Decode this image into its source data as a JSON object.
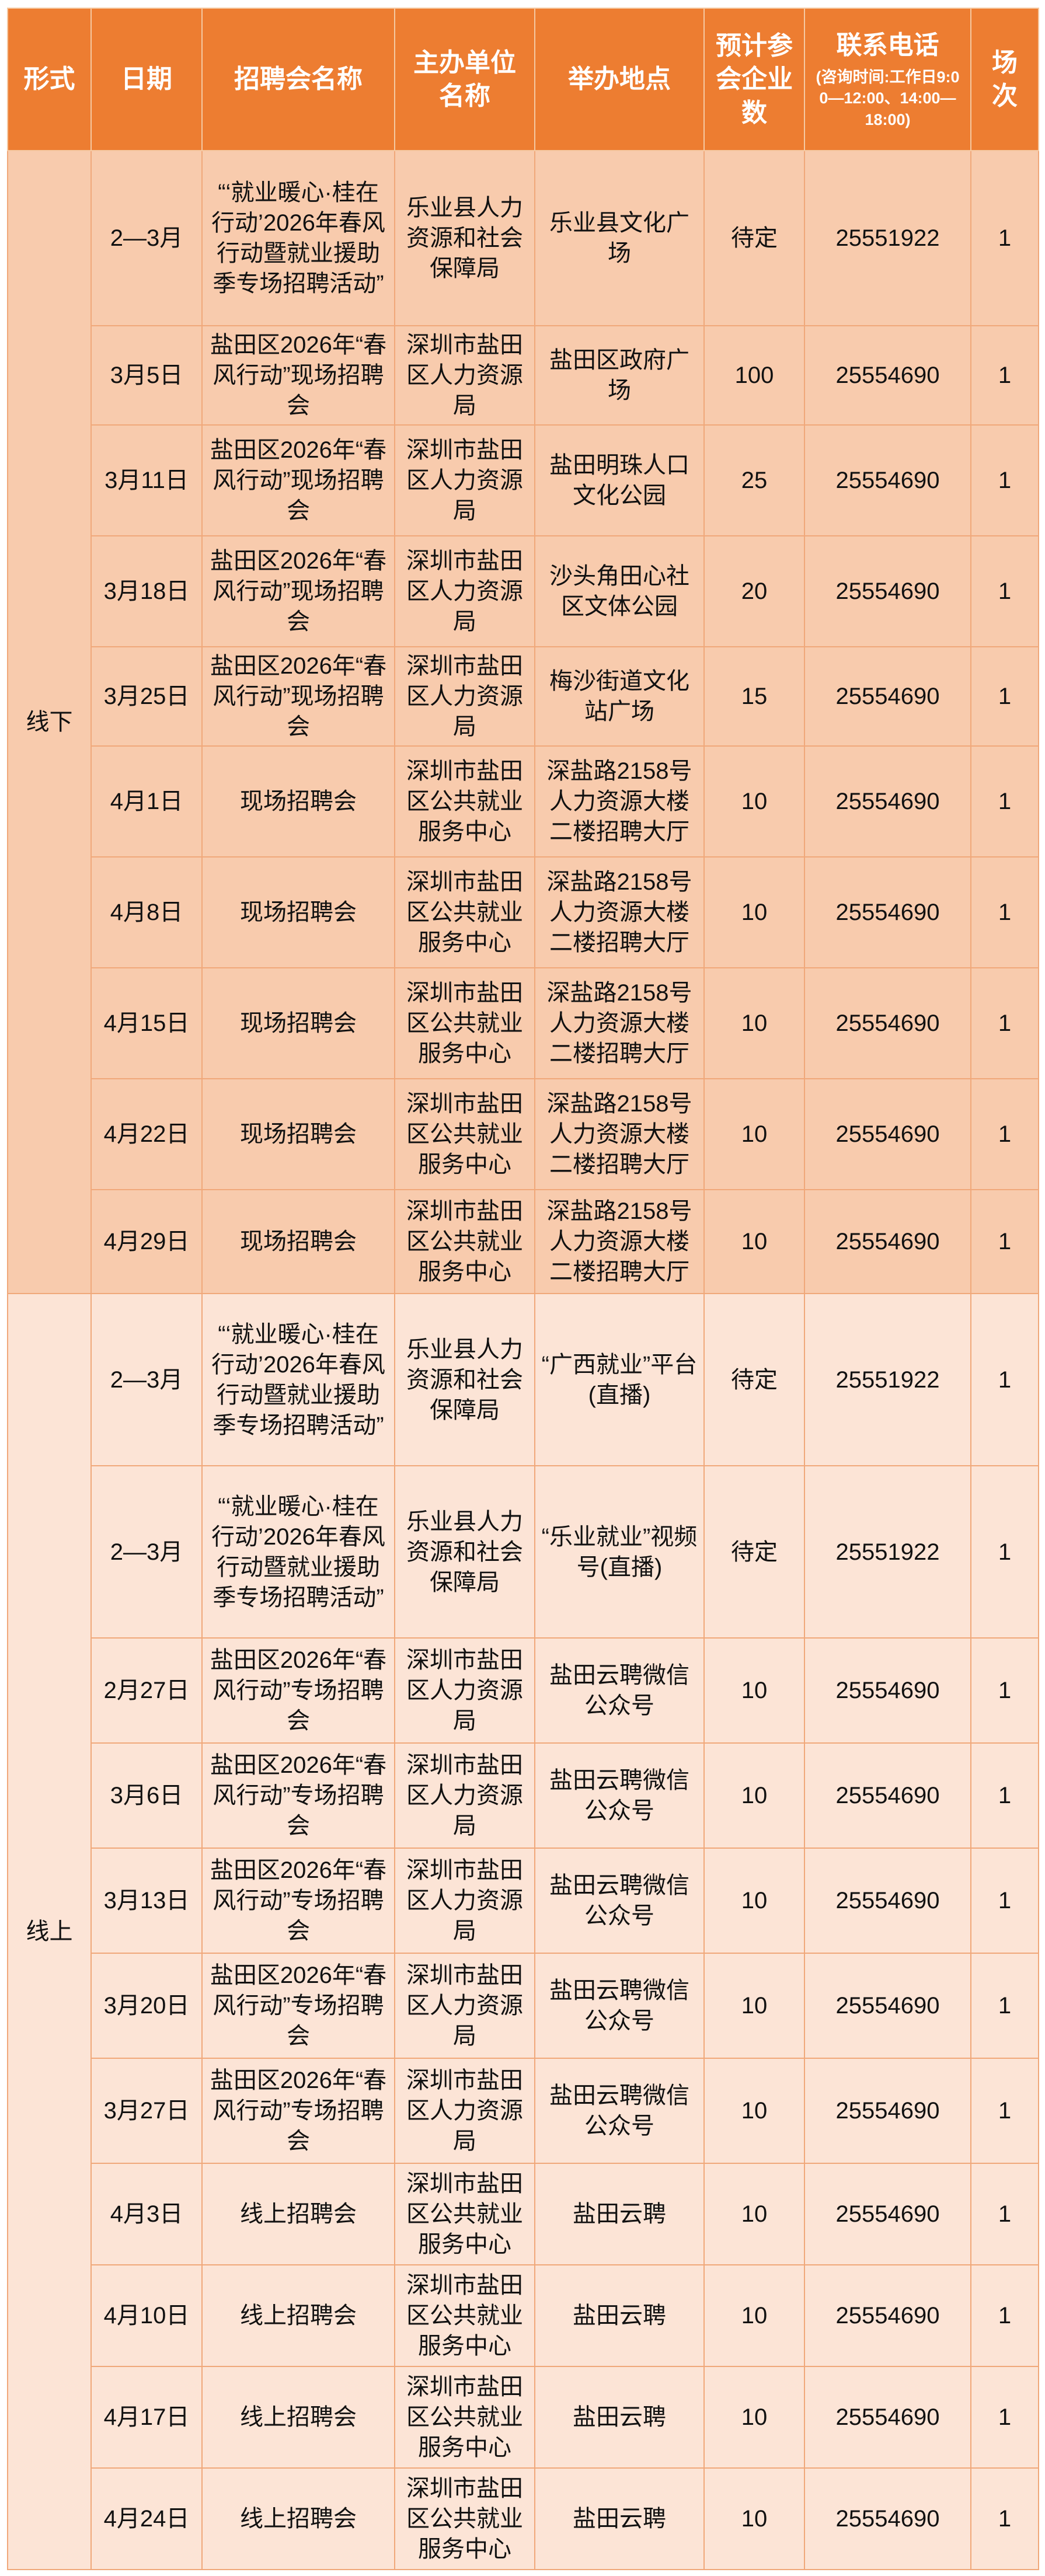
{
  "colors": {
    "header_bg": "#ED7D31",
    "header_text": "#FFFFFF",
    "offline_section_bg": "#F8CBAD",
    "online_section_bg": "#FCE4D6",
    "grid_line": "#F0A87A",
    "body_text": "#111111"
  },
  "table": {
    "columns": [
      "形式",
      "日期",
      "招聘会名称",
      "主办单位名称",
      "举办地点",
      "预计参会企业数",
      "联系电话",
      "场次"
    ],
    "phone_note": "(咨询时间:工作日9:00—12:00、14:00—18:00)",
    "groups": [
      {
        "label": "线下",
        "rows": [
          {
            "date": "2—3月",
            "name": "“‘就业暖心·桂在行动’2026年春风行动暨就业援助季专场招聘活动”",
            "organizer": "乐业县人力资源和社会保障局",
            "venue": "乐业县文化广场",
            "companies": "待定",
            "phone": "25551922",
            "sessions": "1"
          },
          {
            "date": "3月5日",
            "name": "盐田区2026年“春风行动”现场招聘会",
            "organizer": "深圳市盐田区人力资源局",
            "venue": "盐田区政府广场",
            "companies": "100",
            "phone": "25554690",
            "sessions": "1"
          },
          {
            "date": "3月11日",
            "name": "盐田区2026年“春风行动”现场招聘会",
            "organizer": "深圳市盐田区人力资源局",
            "venue": "盐田明珠人口文化公园",
            "companies": "25",
            "phone": "25554690",
            "sessions": "1"
          },
          {
            "date": "3月18日",
            "name": "盐田区2026年“春风行动”现场招聘会",
            "organizer": "深圳市盐田区人力资源局",
            "venue": "沙头角田心社区文体公园",
            "companies": "20",
            "phone": "25554690",
            "sessions": "1"
          },
          {
            "date": "3月25日",
            "name": "盐田区2026年“春风行动”现场招聘会",
            "organizer": "深圳市盐田区人力资源局",
            "venue": "梅沙街道文化站广场",
            "companies": "15",
            "phone": "25554690",
            "sessions": "1"
          },
          {
            "date": "4月1日",
            "name": "现场招聘会",
            "organizer": "深圳市盐田区公共就业服务中心",
            "venue": "深盐路2158号人力资源大楼二楼招聘大厅",
            "companies": "10",
            "phone": "25554690",
            "sessions": "1"
          },
          {
            "date": "4月8日",
            "name": "现场招聘会",
            "organizer": "深圳市盐田区公共就业服务中心",
            "venue": "深盐路2158号人力资源大楼二楼招聘大厅",
            "companies": "10",
            "phone": "25554690",
            "sessions": "1"
          },
          {
            "date": "4月15日",
            "name": "现场招聘会",
            "organizer": "深圳市盐田区公共就业服务中心",
            "venue": "深盐路2158号人力资源大楼二楼招聘大厅",
            "companies": "10",
            "phone": "25554690",
            "sessions": "1"
          },
          {
            "date": "4月22日",
            "name": "现场招聘会",
            "organizer": "深圳市盐田区公共就业服务中心",
            "venue": "深盐路2158号人力资源大楼二楼招聘大厅",
            "companies": "10",
            "phone": "25554690",
            "sessions": "1"
          },
          {
            "date": "4月29日",
            "name": "现场招聘会",
            "organizer": "深圳市盐田区公共就业服务中心",
            "venue": "深盐路2158号人力资源大楼二楼招聘大厅",
            "companies": "10",
            "phone": "25554690",
            "sessions": "1"
          }
        ]
      },
      {
        "label": "线上",
        "rows": [
          {
            "date": "2—3月",
            "name": "“‘就业暖心·桂在行动’2026年春风行动暨就业援助季专场招聘活动”",
            "organizer": "乐业县人力资源和社会保障局",
            "venue": "“广西就业”平台(直播)",
            "companies": "待定",
            "phone": "25551922",
            "sessions": "1"
          },
          {
            "date": "2—3月",
            "name": "“‘就业暖心·桂在行动’2026年春风行动暨就业援助季专场招聘活动”",
            "organizer": "乐业县人力资源和社会保障局",
            "venue": "“乐业就业”视频号(直播)",
            "companies": "待定",
            "phone": "25551922",
            "sessions": "1"
          },
          {
            "date": "2月27日",
            "name": "盐田区2026年“春风行动”专场招聘会",
            "organizer": "深圳市盐田区人力资源局",
            "venue": "盐田云聘微信公众号",
            "companies": "10",
            "phone": "25554690",
            "sessions": "1"
          },
          {
            "date": "3月6日",
            "name": "盐田区2026年“春风行动”专场招聘会",
            "organizer": "深圳市盐田区人力资源局",
            "venue": "盐田云聘微信公众号",
            "companies": "10",
            "phone": "25554690",
            "sessions": "1"
          },
          {
            "date": "3月13日",
            "name": "盐田区2026年“春风行动”专场招聘会",
            "organizer": "深圳市盐田区人力资源局",
            "venue": "盐田云聘微信公众号",
            "companies": "10",
            "phone": "25554690",
            "sessions": "1"
          },
          {
            "date": "3月20日",
            "name": "盐田区2026年“春风行动”专场招聘会",
            "organizer": "深圳市盐田区人力资源局",
            "venue": "盐田云聘微信公众号",
            "companies": "10",
            "phone": "25554690",
            "sessions": "1"
          },
          {
            "date": "3月27日",
            "name": "盐田区2026年“春风行动”专场招聘会",
            "organizer": "深圳市盐田区人力资源局",
            "venue": "盐田云聘微信公众号",
            "companies": "10",
            "phone": "25554690",
            "sessions": "1"
          },
          {
            "date": "4月3日",
            "name": "线上招聘会",
            "organizer": "深圳市盐田区公共就业服务中心",
            "venue": "盐田云聘",
            "companies": "10",
            "phone": "25554690",
            "sessions": "1"
          },
          {
            "date": "4月10日",
            "name": "线上招聘会",
            "organizer": "深圳市盐田区公共就业服务中心",
            "venue": "盐田云聘",
            "companies": "10",
            "phone": "25554690",
            "sessions": "1"
          },
          {
            "date": "4月17日",
            "name": "线上招聘会",
            "organizer": "深圳市盐田区公共就业服务中心",
            "venue": "盐田云聘",
            "companies": "10",
            "phone": "25554690",
            "sessions": "1"
          },
          {
            "date": "4月24日",
            "name": "线上招聘会",
            "organizer": "深圳市盐田区公共就业服务中心",
            "venue": "盐田云聘",
            "companies": "10",
            "phone": "25554690",
            "sessions": "1"
          }
        ]
      }
    ]
  }
}
